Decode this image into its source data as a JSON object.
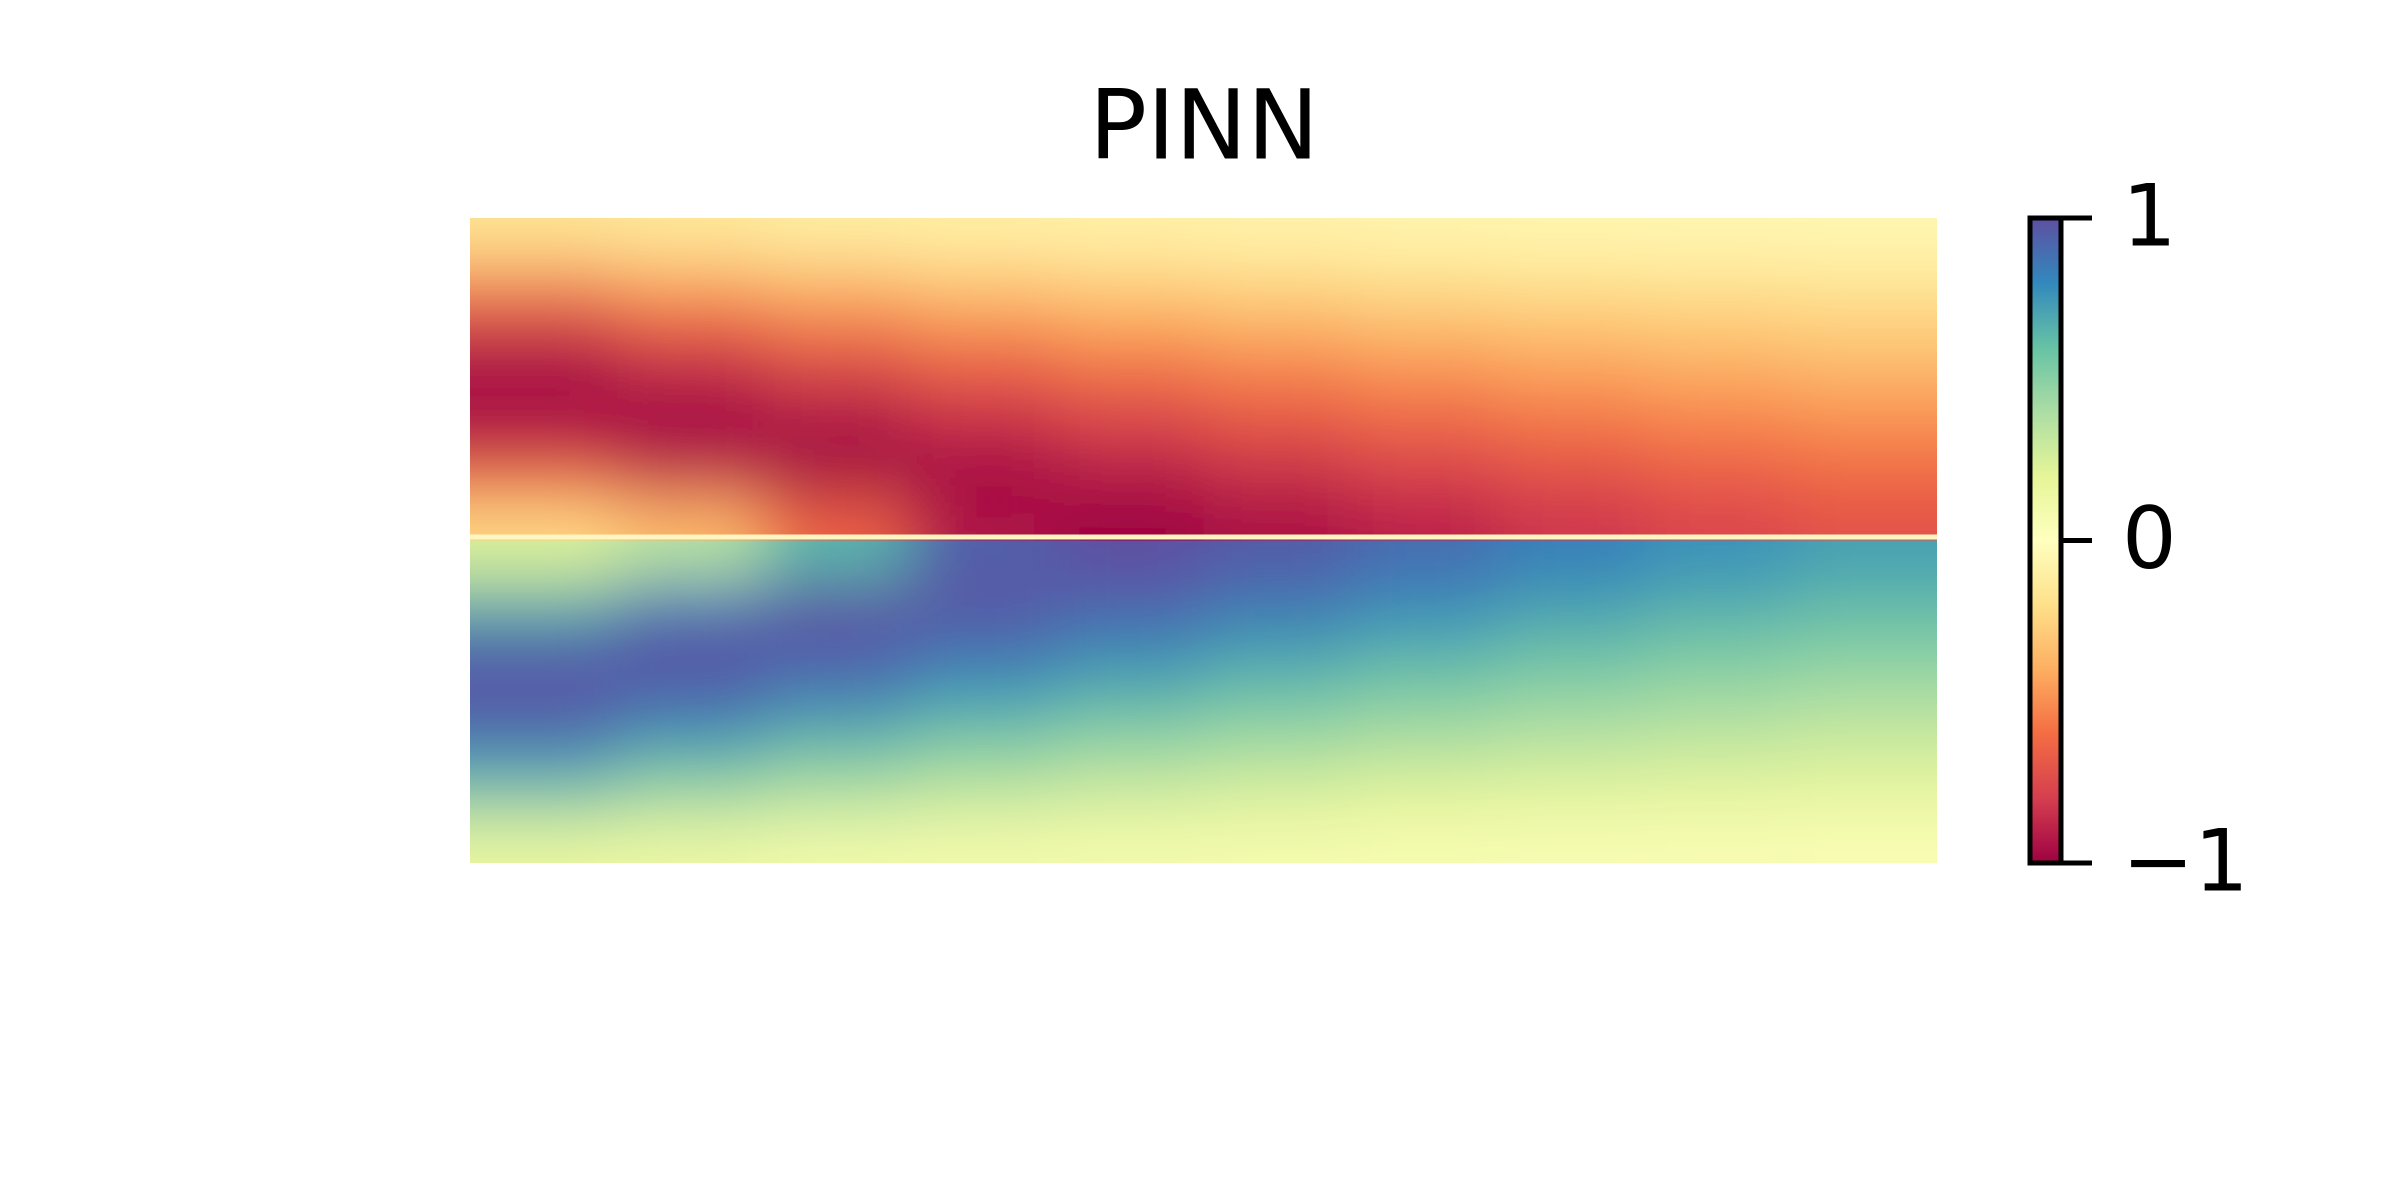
{
  "chart_data": {
    "type": "heatmap",
    "title": "PINN",
    "colormap": "Spectral",
    "zlim": [
      -1,
      1
    ],
    "zticks": [
      {
        "value": -1,
        "label": "−1"
      },
      0,
      1
    ],
    "values": [
      [
        -0.16,
        -0.14,
        -0.11,
        -0.1,
        -0.09,
        -0.08,
        -0.07,
        -0.06,
        -0.055,
        -0.05
      ],
      [
        -0.48,
        -0.39,
        -0.33,
        -0.28,
        -0.25,
        -0.22,
        -0.19,
        -0.17,
        -0.16,
        -0.15
      ],
      [
        -0.76,
        -0.63,
        -0.53,
        -0.46,
        -0.4,
        -0.36,
        -0.32,
        -0.295,
        -0.27,
        -0.25
      ],
      [
        -0.94,
        -0.83,
        -0.72,
        -0.63,
        -0.56,
        -0.5,
        -0.45,
        -0.41,
        -0.375,
        -0.34
      ],
      [
        -1.0,
        -0.97,
        -0.88,
        -0.78,
        -0.7,
        -0.63,
        -0.57,
        -0.52,
        -0.475,
        -0.44
      ],
      [
        -0.9,
        -0.99,
        -0.98,
        -0.91,
        -0.83,
        -0.755,
        -0.69,
        -0.63,
        -0.575,
        -0.54
      ],
      [
        -0.64,
        -0.83,
        -0.98,
        -0.99,
        -0.94,
        -0.87,
        -0.8,
        -0.735,
        -0.68,
        -0.63
      ],
      [
        -0.23,
        -0.35,
        -0.64,
        -0.94,
        -1.0,
        -0.96,
        -0.9,
        -0.83,
        -0.77,
        -0.72
      ],
      [
        0.23,
        0.35,
        0.64,
        0.94,
        1.0,
        0.96,
        0.9,
        0.83,
        0.77,
        0.72
      ],
      [
        0.64,
        0.83,
        0.98,
        0.99,
        0.94,
        0.87,
        0.8,
        0.735,
        0.68,
        0.63
      ],
      [
        0.9,
        0.99,
        0.98,
        0.91,
        0.83,
        0.755,
        0.69,
        0.63,
        0.575,
        0.54
      ],
      [
        1.0,
        0.97,
        0.88,
        0.78,
        0.7,
        0.63,
        0.57,
        0.52,
        0.475,
        0.44
      ],
      [
        0.94,
        0.83,
        0.72,
        0.63,
        0.56,
        0.5,
        0.45,
        0.41,
        0.375,
        0.34
      ],
      [
        0.76,
        0.63,
        0.53,
        0.46,
        0.4,
        0.36,
        0.32,
        0.295,
        0.27,
        0.25
      ],
      [
        0.48,
        0.39,
        0.33,
        0.28,
        0.25,
        0.22,
        0.19,
        0.17,
        0.16,
        0.15
      ],
      [
        0.16,
        0.14,
        0.11,
        0.1,
        0.09,
        0.08,
        0.07,
        0.06,
        0.055,
        0.05
      ]
    ]
  }
}
